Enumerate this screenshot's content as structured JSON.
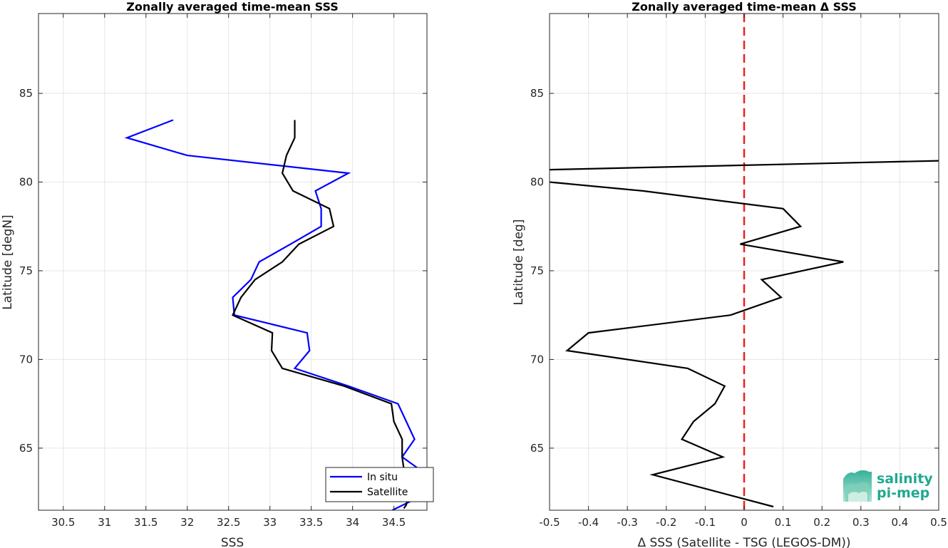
{
  "chart_data": [
    {
      "type": "line",
      "title": "Zonally averaged time-mean SSS",
      "xlabel": "SSS",
      "ylabel": "Latitude [degN]",
      "xlim": [
        30.2,
        34.9
      ],
      "ylim": [
        61.5,
        89.5
      ],
      "xticks": [
        30.5,
        31,
        31.5,
        32,
        32.5,
        33,
        33.5,
        34,
        34.5
      ],
      "xtick_labels": [
        "30.5",
        "31",
        "31.5",
        "32",
        "32.5",
        "33",
        "33.5",
        "34",
        "34.5"
      ],
      "yticks": [
        65,
        70,
        75,
        80,
        85
      ],
      "ytick_labels": [
        "65",
        "70",
        "75",
        "80",
        "85"
      ],
      "grid": true,
      "legend_position": "bottom-right",
      "series": [
        {
          "name": "In situ",
          "color": "#0000ff",
          "points": [
            [
              31.83,
              83.5
            ],
            [
              31.27,
              82.5
            ],
            [
              32.0,
              81.5
            ],
            [
              33.95,
              80.5
            ],
            [
              33.55,
              79.5
            ],
            [
              33.62,
              78.5
            ],
            [
              33.62,
              77.5
            ],
            [
              33.25,
              76.5
            ],
            [
              32.87,
              75.5
            ],
            [
              32.77,
              74.5
            ],
            [
              32.55,
              73.5
            ],
            [
              32.57,
              72.5
            ],
            [
              33.45,
              71.5
            ],
            [
              33.48,
              70.5
            ],
            [
              33.3,
              69.5
            ],
            [
              33.95,
              68.5
            ],
            [
              34.55,
              67.5
            ],
            [
              34.65,
              66.5
            ],
            [
              34.75,
              65.5
            ],
            [
              34.6,
              64.5
            ],
            [
              34.9,
              63.5
            ],
            [
              34.8,
              62.5
            ],
            [
              34.7,
              62.0
            ],
            [
              34.48,
              61.5
            ]
          ]
        },
        {
          "name": "Satellite",
          "color": "#000000",
          "points": [
            [
              33.3,
              83.5
            ],
            [
              33.3,
              82.5
            ],
            [
              33.2,
              81.5
            ],
            [
              33.15,
              80.5
            ],
            [
              33.28,
              79.5
            ],
            [
              33.72,
              78.5
            ],
            [
              33.77,
              77.5
            ],
            [
              33.35,
              76.5
            ],
            [
              33.15,
              75.5
            ],
            [
              32.82,
              74.5
            ],
            [
              32.65,
              73.5
            ],
            [
              32.55,
              72.5
            ],
            [
              33.03,
              71.5
            ],
            [
              33.02,
              70.5
            ],
            [
              33.15,
              69.5
            ],
            [
              33.9,
              68.5
            ],
            [
              34.47,
              67.5
            ],
            [
              34.5,
              66.5
            ],
            [
              34.6,
              65.5
            ],
            [
              34.6,
              64.5
            ],
            [
              34.63,
              63.5
            ],
            [
              34.68,
              62.5
            ],
            [
              34.65,
              61.8
            ],
            [
              34.62,
              61.6
            ]
          ]
        }
      ]
    },
    {
      "type": "line",
      "title": "Zonally averaged time-mean Δ SSS",
      "xlabel": "Δ SSS (Satellite - TSG (LEGOS-DM))",
      "ylabel": "Latitude [deg]",
      "xlim": [
        -0.5,
        0.5
      ],
      "ylim": [
        61.5,
        89.5
      ],
      "xticks": [
        -0.5,
        -0.4,
        -0.3,
        -0.2,
        -0.1,
        0,
        0.1,
        0.2,
        0.3,
        0.4,
        0.5
      ],
      "xtick_labels": [
        "-0.5",
        "-0.4",
        "-0.3",
        "-0.2",
        "-0.1",
        "0",
        "0.1",
        "0.2",
        "0.3",
        "0.4",
        "0.5"
      ],
      "yticks": [
        65,
        70,
        75,
        80,
        85
      ],
      "ytick_labels": [
        "65",
        "70",
        "75",
        "80",
        "85"
      ],
      "grid": true,
      "reference_line": {
        "x": 0,
        "color": "#e8221f",
        "style": "dashed"
      },
      "series": [
        {
          "color": "#000000",
          "points": [
            [
              0.075,
              61.7
            ],
            [
              -0.235,
              63.5
            ],
            [
              -0.055,
              64.5
            ],
            [
              -0.16,
              65.5
            ],
            [
              -0.13,
              66.5
            ],
            [
              -0.075,
              67.5
            ],
            [
              -0.05,
              68.5
            ],
            [
              -0.145,
              69.5
            ],
            [
              -0.455,
              70.5
            ],
            [
              -0.4,
              71.5
            ],
            [
              -0.035,
              72.5
            ],
            [
              0.095,
              73.5
            ],
            [
              0.045,
              74.5
            ],
            [
              0.255,
              75.5
            ],
            [
              -0.01,
              76.5
            ],
            [
              0.145,
              77.5
            ],
            [
              0.1,
              78.5
            ],
            [
              -0.26,
              79.5
            ],
            [
              -0.5,
              80.0
            ]
          ]
        },
        {
          "color": "#000000",
          "points": [
            [
              -0.5,
              80.7
            ],
            [
              0.5,
              81.2
            ]
          ]
        }
      ]
    }
  ],
  "logo": {
    "line1": "salinity",
    "line2": "pi-mep"
  }
}
